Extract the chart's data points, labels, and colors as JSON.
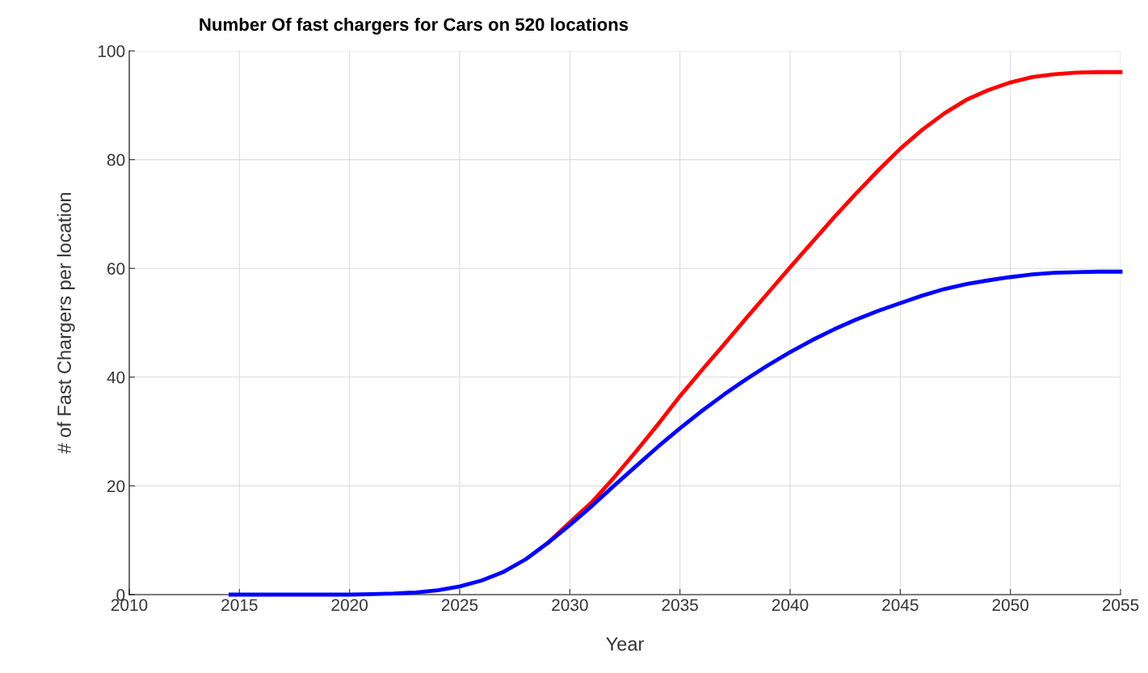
{
  "chart_data": {
    "type": "line",
    "title": "Number Of fast chargers for Cars on 520 locations",
    "xlabel": "Year",
    "ylabel": "# of Fast Chargers per location",
    "x": [
      2014.6,
      2016,
      2017,
      2018,
      2019,
      2020,
      2021,
      2022,
      2023,
      2024,
      2025,
      2026,
      2027,
      2028,
      2029,
      2030,
      2031,
      2032,
      2033,
      2034,
      2035,
      2036,
      2037,
      2038,
      2039,
      2040,
      2041,
      2042,
      2043,
      2044,
      2045,
      2046,
      2047,
      2048,
      2049,
      2050,
      2051,
      2052,
      2053,
      2054,
      2055
    ],
    "series": [
      {
        "color": "#ff0000",
        "values": [
          null,
          null,
          null,
          null,
          null,
          null,
          null,
          null,
          null,
          null,
          null,
          null,
          null,
          null,
          9.5,
          13.3,
          17,
          21.5,
          26.3,
          31.3,
          36.5,
          41.3,
          46,
          50.8,
          55.5,
          60.2,
          64.8,
          69.4,
          73.8,
          78,
          82,
          85.5,
          88.5,
          91,
          92.8,
          94.2,
          95.2,
          95.7,
          96,
          96.1,
          96.1
        ]
      },
      {
        "color": "#0000ff",
        "values": [
          0,
          0,
          0,
          0,
          0,
          0,
          0.1,
          0.2,
          0.4,
          0.8,
          1.5,
          2.6,
          4.2,
          6.5,
          9.5,
          12.8,
          16.3,
          20,
          23.6,
          27.2,
          30.6,
          33.8,
          36.8,
          39.6,
          42.2,
          44.6,
          46.8,
          48.8,
          50.6,
          52.2,
          53.6,
          55,
          56.2,
          57.1,
          57.8,
          58.4,
          58.9,
          59.2,
          59.3,
          59.4,
          59.4
        ]
      }
    ],
    "xlim": [
      2010,
      2055
    ],
    "xticks": [
      2010,
      2015,
      2020,
      2025,
      2030,
      2035,
      2040,
      2045,
      2050,
      2055
    ],
    "ylim": [
      0,
      100
    ],
    "yticks": [
      0,
      20,
      40,
      60,
      80,
      100
    ],
    "grid": true,
    "marker": "none",
    "line_style": "solid"
  }
}
